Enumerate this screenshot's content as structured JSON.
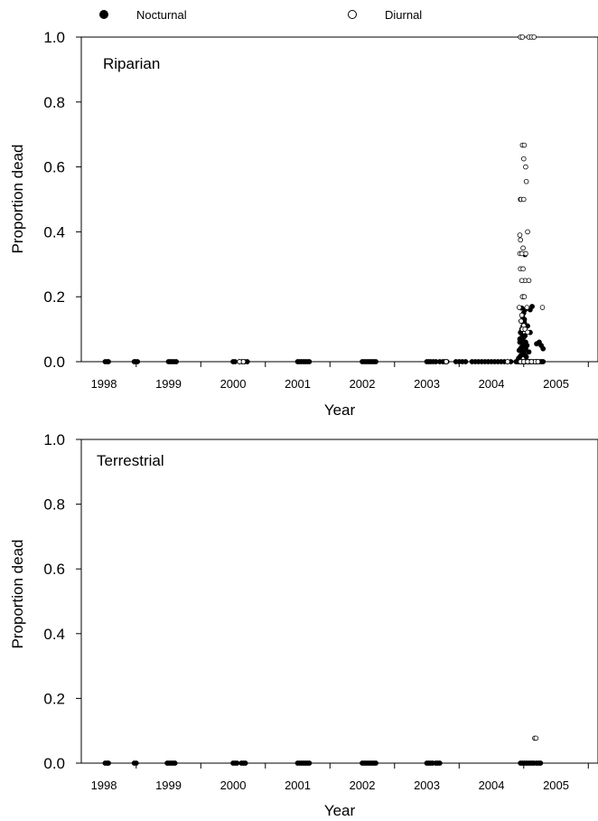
{
  "legend": {
    "items": [
      {
        "label": "Nocturnal",
        "marker": "filled-circle",
        "color": "#000000"
      },
      {
        "label": "Diurnal",
        "marker": "open-circle",
        "color": "#000000"
      }
    ],
    "placement": "top"
  },
  "chart_data": [
    {
      "type": "scatter",
      "panel_label": "Riparian",
      "xlabel": "Year",
      "ylabel": "Proportion dead",
      "xlim": [
        1997.65,
        2005.65
      ],
      "ylim": [
        0,
        1
      ],
      "yticks": [
        "0.0",
        "0.2",
        "0.4",
        "0.6",
        "0.8",
        "1.0"
      ],
      "xtick_labels": [
        "1998",
        "1999",
        "2000",
        "2001",
        "2002",
        "2003",
        "2004",
        "2005"
      ],
      "grid": false,
      "series": [
        {
          "name": "Nocturnal",
          "marker": "filled",
          "x": [
            1998.02,
            1998.05,
            1998.07,
            1998.47,
            1998.49,
            1998.52,
            1999.0,
            1999.03,
            1999.06,
            1999.09,
            1999.12,
            2000.0,
            2000.03,
            2000.1,
            2000.14,
            2000.18,
            2000.22,
            2001.0,
            2001.03,
            2001.06,
            2001.09,
            2001.12,
            2001.15,
            2001.18,
            2002.0,
            2002.03,
            2002.06,
            2002.09,
            2002.12,
            2002.15,
            2002.18,
            2002.21,
            2003.0,
            2003.03,
            2003.06,
            2003.1,
            2003.14,
            2003.2,
            2003.25,
            2003.28,
            2003.31,
            2003.45,
            2003.5,
            2003.55,
            2003.6,
            2003.7,
            2003.75,
            2003.8,
            2003.85,
            2003.9,
            2003.95,
            2004.0,
            2004.05,
            2004.1,
            2004.15,
            2004.2,
            2004.25,
            2004.3,
            2004.38,
            2004.4,
            2004.42,
            2004.43,
            2004.45,
            2004.47,
            2004.48,
            2004.5,
            2004.52,
            2004.53,
            2004.55,
            2004.57,
            2004.58,
            2004.6,
            2004.62,
            2004.65,
            2004.68,
            2004.7,
            2004.72,
            2004.75,
            2004.78,
            2004.8,
            2004.42,
            2004.44,
            2004.46,
            2004.48,
            2004.5,
            2004.52,
            2004.54,
            2004.43,
            2004.45,
            2004.47,
            2004.49,
            2004.51,
            2004.53,
            2004.44,
            2004.46,
            2004.48,
            2004.5,
            2004.52,
            2004.45,
            2004.47,
            2004.49,
            2004.51,
            2004.46,
            2004.48,
            2004.5,
            2004.52,
            2004.47,
            2004.49,
            2004.51,
            2004.5,
            2004.53,
            2004.55,
            2004.58,
            2004.6,
            2004.63,
            2004.7,
            2004.74,
            2004.77,
            2004.8,
            2004.44,
            2004.48,
            2004.52,
            2004.56,
            2004.6
          ],
          "y": [
            0,
            0,
            0,
            0,
            0,
            0,
            0,
            0,
            0,
            0,
            0,
            0,
            0,
            0,
            0,
            0,
            0,
            0,
            0,
            0,
            0,
            0,
            0,
            0,
            0,
            0,
            0,
            0,
            0,
            0,
            0,
            0,
            0,
            0,
            0,
            0,
            0,
            0,
            0,
            0,
            0,
            0,
            0,
            0,
            0,
            0,
            0,
            0,
            0,
            0,
            0,
            0,
            0,
            0,
            0,
            0,
            0,
            0,
            0,
            0,
            0,
            0,
            0,
            0,
            0,
            0,
            0,
            0,
            0,
            0,
            0,
            0,
            0,
            0,
            0,
            0,
            0,
            0,
            0,
            0,
            0.01,
            0.015,
            0.02,
            0.025,
            0.03,
            0.02,
            0.015,
            0.035,
            0.04,
            0.045,
            0.05,
            0.055,
            0.04,
            0.06,
            0.065,
            0.07,
            0.075,
            0.08,
            0.09,
            0.1,
            0.11,
            0.12,
            0.125,
            0.14,
            0.15,
            0.16,
            0.165,
            0.2,
            0.13,
            0.1,
            0.06,
            0.05,
            0.03,
            0.16,
            0.17,
            0.055,
            0.06,
            0.05,
            0.04,
            0.07,
            0.08,
            0.33,
            0.11,
            0.09
          ]
        },
        {
          "name": "Diurnal",
          "marker": "open",
          "x": [
            2000.1,
            2000.16,
            2003.3,
            2004.25,
            2004.45,
            2004.48,
            2004.58,
            2004.62,
            2004.66,
            2004.48,
            2004.51,
            2004.5,
            2004.53,
            2004.54,
            2004.45,
            2004.46,
            2004.5,
            2004.56,
            2004.44,
            2004.45,
            2004.49,
            2004.53,
            2004.44,
            2004.47,
            2004.45,
            2004.49,
            2004.52,
            2004.58,
            2004.47,
            2004.48,
            2004.51,
            2004.55,
            2004.43,
            2004.47,
            2004.46,
            2004.5,
            2004.48,
            2004.52,
            2004.56,
            2004.79,
            2004.45,
            2004.5,
            2004.56,
            2004.62,
            2004.68,
            2004.72
          ],
          "y": [
            0,
            0,
            0,
            0,
            1.0,
            1.0,
            1.0,
            1.0,
            1.0,
            0.667,
            0.667,
            0.625,
            0.6,
            0.555,
            0.5,
            0.5,
            0.5,
            0.4,
            0.39,
            0.375,
            0.35,
            0.333,
            0.333,
            0.333,
            0.286,
            0.286,
            0.25,
            0.25,
            0.25,
            0.2,
            0.2,
            0.167,
            0.167,
            0.143,
            0.125,
            0.111,
            0.1,
            0.1,
            0.091,
            0.167,
            0.0,
            0.0,
            0.0,
            0.0,
            0.0,
            0.0
          ]
        }
      ]
    },
    {
      "type": "scatter",
      "panel_label": "Terrestrial",
      "xlabel": "Year",
      "ylabel": "Proportion dead",
      "xlim": [
        1997.65,
        2005.65
      ],
      "ylim": [
        0,
        1
      ],
      "yticks": [
        "0.0",
        "0.2",
        "0.4",
        "0.6",
        "0.8",
        "1.0"
      ],
      "xtick_labels": [
        "1998",
        "1999",
        "2000",
        "2001",
        "2002",
        "2003",
        "2004",
        "2005"
      ],
      "grid": false,
      "series": [
        {
          "name": "Nocturnal",
          "marker": "filled",
          "x": [
            1998.02,
            1998.05,
            1998.07,
            1998.47,
            1998.5,
            1998.98,
            1999.01,
            1999.04,
            1999.07,
            1999.1,
            2000.0,
            2000.03,
            2000.06,
            2000.13,
            2000.16,
            2000.19,
            2001.0,
            2001.03,
            2001.06,
            2001.09,
            2001.12,
            2001.15,
            2001.18,
            2002.0,
            2002.03,
            2002.06,
            2002.09,
            2002.12,
            2002.15,
            2002.18,
            2002.21,
            2003.0,
            2003.03,
            2003.06,
            2003.09,
            2003.14,
            2003.17,
            2003.2,
            2004.45,
            2004.48,
            2004.51,
            2004.54,
            2004.57,
            2004.6,
            2004.63,
            2004.66,
            2004.7,
            2004.73,
            2004.76
          ],
          "y": [
            0,
            0,
            0,
            0,
            0,
            0,
            0,
            0,
            0,
            0,
            0,
            0,
            0,
            0,
            0,
            0,
            0,
            0,
            0,
            0,
            0,
            0,
            0,
            0,
            0,
            0,
            0,
            0,
            0,
            0,
            0,
            0,
            0,
            0,
            0,
            0,
            0,
            0,
            0,
            0,
            0,
            0,
            0,
            0,
            0,
            0,
            0,
            0,
            0
          ]
        },
        {
          "name": "Diurnal",
          "marker": "open",
          "x": [
            2004.67,
            2004.69
          ],
          "y": [
            0.077,
            0.077
          ]
        }
      ]
    }
  ]
}
